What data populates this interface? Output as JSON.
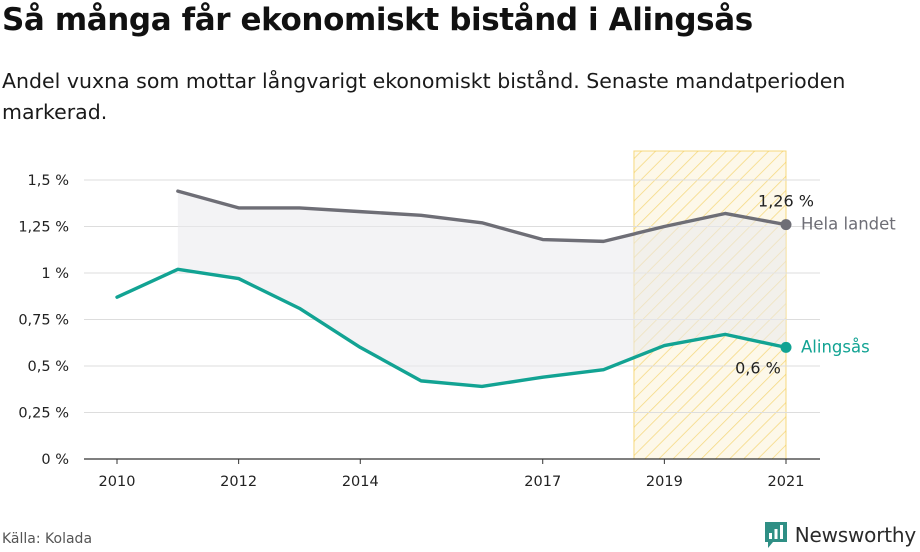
{
  "title": "Så många får ekonomiskt bistånd i Alingsås",
  "subtitle": "Andel vuxna som mottar långvarigt ekonomiskt bistånd. Senaste mandatperioden markerad.",
  "source": "Källa: Kolada",
  "brand": "Newsworthy",
  "colors": {
    "alingsas": "#12a393",
    "hela_landet": "#6e6e76",
    "highlight": "#f2c94c",
    "brand_icon": "#2f8f85"
  },
  "chart_data": {
    "type": "line",
    "x": [
      2010,
      2011,
      2012,
      2013,
      2014,
      2015,
      2016,
      2017,
      2018,
      2019,
      2020,
      2021
    ],
    "series": [
      {
        "name": "Hela landet",
        "values": [
          null,
          1.44,
          1.35,
          1.35,
          1.33,
          1.31,
          1.27,
          1.18,
          1.17,
          1.25,
          1.32,
          1.26
        ],
        "end_label": "1,26 %"
      },
      {
        "name": "Alingsås",
        "values": [
          0.87,
          1.02,
          0.97,
          0.81,
          0.6,
          0.42,
          0.39,
          0.44,
          0.48,
          0.61,
          0.67,
          0.6
        ],
        "end_label": "0,6 %"
      }
    ],
    "ylim": [
      0,
      1.6
    ],
    "yticks": [
      0,
      0.25,
      0.5,
      0.75,
      1,
      1.25,
      1.5
    ],
    "ytick_labels": [
      "0 %",
      "0,25 %",
      "0,5 %",
      "0,75 %",
      "1 %",
      "1,25 %",
      "1,5 %"
    ],
    "xticks": [
      2010,
      2012,
      2014,
      2017,
      2019,
      2021
    ],
    "xtick_labels": [
      "2010",
      "2012",
      "2014",
      "2017",
      "2019",
      "2021"
    ],
    "highlight_range": [
      2018.5,
      2021
    ],
    "grid": true
  }
}
